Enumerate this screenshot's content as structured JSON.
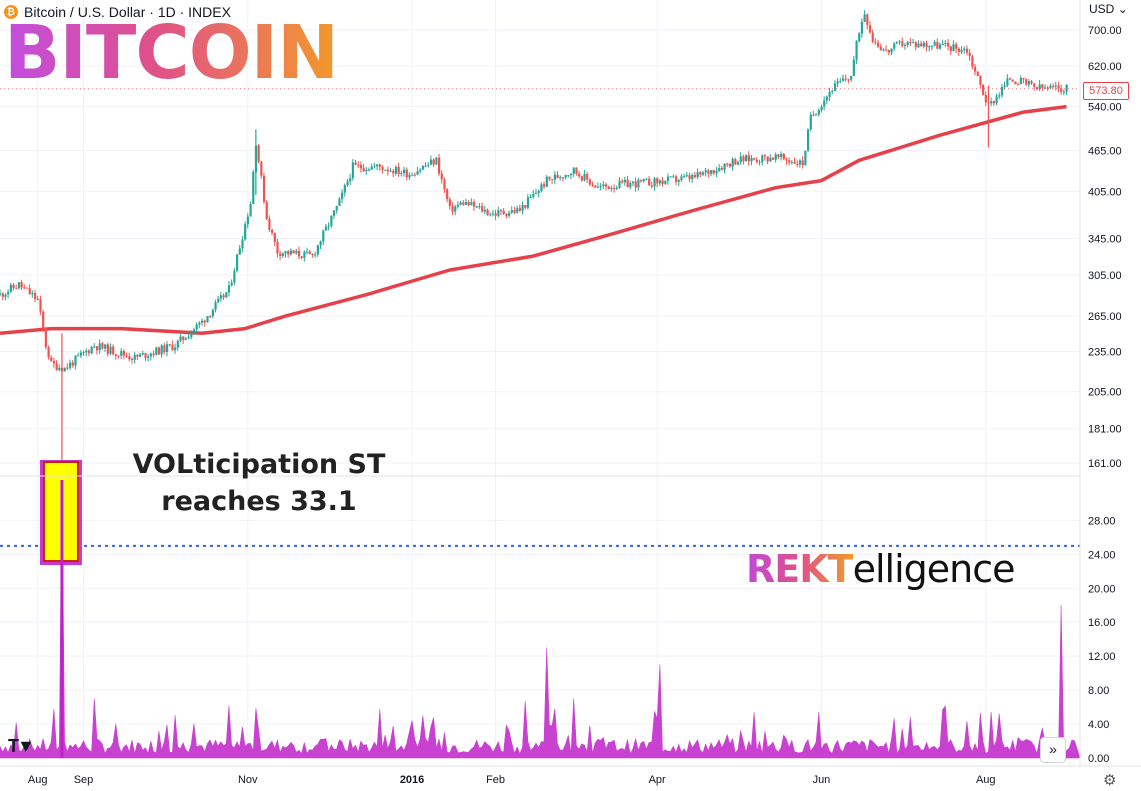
{
  "header": {
    "symbol_icon": "bitcoin-icon",
    "title": "Bitcoin / U.S. Dollar · 1D · INDEX"
  },
  "brand_title": "BITCOIN",
  "annotation": {
    "line1": "VOLticipation ST",
    "line2": "reaches 33.1"
  },
  "watermark": {
    "part1": "REKT",
    "part2": "elligence"
  },
  "currency_label": "USD",
  "last_price_label": "573.80",
  "controls": {
    "scroll_icon": "double-chevron-right-icon",
    "settings_icon": "gear-icon"
  },
  "colors": {
    "candle_up": "#26a69a",
    "candle_down": "#ef5350",
    "moving_average": "#e6414a",
    "indicator": "#c020c8",
    "threshold_line": "#2962ff",
    "highlight_fill": "#ffff00",
    "highlight_border": "#c43ad0"
  },
  "chart_data": [
    {
      "type": "candlestick",
      "scale": "log",
      "ylim": [
        155,
        760
      ],
      "x_labels": [
        "Aug",
        "Sep",
        "Nov",
        "2016",
        "Feb",
        "Apr",
        "Jun",
        "Aug"
      ],
      "y_ticks": [
        700,
        620,
        540,
        465,
        405,
        345,
        305,
        265,
        235,
        205,
        181,
        161
      ],
      "y_tick_labels": [
        "700.00",
        "620.00",
        "540.00",
        "465.00",
        "405.00",
        "345.00",
        "305.00",
        "265.00",
        "235.00",
        "205.00",
        "181.00",
        "161.00"
      ],
      "last_price": 573.8,
      "price_path": [
        {
          "x": "2015-08-01",
          "y": 285
        },
        {
          "x": "2015-08-08",
          "y": 295
        },
        {
          "x": "2015-08-15",
          "y": 280
        },
        {
          "x": "2015-08-18",
          "y": 240
        },
        {
          "x": "2015-08-20",
          "y": 225
        },
        {
          "x": "2015-08-25",
          "y": 222
        },
        {
          "x": "2015-09-05",
          "y": 240
        },
        {
          "x": "2015-09-20",
          "y": 230
        },
        {
          "x": "2015-10-05",
          "y": 240
        },
        {
          "x": "2015-10-15",
          "y": 260
        },
        {
          "x": "2015-10-25",
          "y": 290
        },
        {
          "x": "2015-11-02",
          "y": 390
        },
        {
          "x": "2015-11-04",
          "y": 480
        },
        {
          "x": "2015-11-08",
          "y": 370
        },
        {
          "x": "2015-11-12",
          "y": 330
        },
        {
          "x": "2015-11-25",
          "y": 325
        },
        {
          "x": "2015-12-05",
          "y": 390
        },
        {
          "x": "2015-12-10",
          "y": 440
        },
        {
          "x": "2015-12-20",
          "y": 440
        },
        {
          "x": "2015-12-31",
          "y": 430
        },
        {
          "x": "2016-01-10",
          "y": 450
        },
        {
          "x": "2016-01-15",
          "y": 380
        },
        {
          "x": "2016-01-20",
          "y": 390
        },
        {
          "x": "2016-01-31",
          "y": 375
        },
        {
          "x": "2016-02-10",
          "y": 380
        },
        {
          "x": "2016-02-20",
          "y": 420
        },
        {
          "x": "2016-03-01",
          "y": 435
        },
        {
          "x": "2016-03-10",
          "y": 410
        },
        {
          "x": "2016-03-20",
          "y": 415
        },
        {
          "x": "2016-04-01",
          "y": 418
        },
        {
          "x": "2016-04-15",
          "y": 425
        },
        {
          "x": "2016-04-30",
          "y": 450
        },
        {
          "x": "2016-05-15",
          "y": 455
        },
        {
          "x": "2016-05-25",
          "y": 445
        },
        {
          "x": "2016-05-28",
          "y": 520
        },
        {
          "x": "2016-06-05",
          "y": 575
        },
        {
          "x": "2016-06-12",
          "y": 600
        },
        {
          "x": "2016-06-15",
          "y": 700
        },
        {
          "x": "2016-06-17",
          "y": 745
        },
        {
          "x": "2016-06-20",
          "y": 680
        },
        {
          "x": "2016-06-25",
          "y": 650
        },
        {
          "x": "2016-07-01",
          "y": 670
        },
        {
          "x": "2016-07-15",
          "y": 665
        },
        {
          "x": "2016-07-25",
          "y": 655
        },
        {
          "x": "2016-08-02",
          "y": 540
        },
        {
          "x": "2016-08-10",
          "y": 595
        },
        {
          "x": "2016-08-20",
          "y": 575
        },
        {
          "x": "2016-08-31",
          "y": 573.8
        }
      ],
      "moving_average": [
        {
          "x": "2015-08-01",
          "y": 250
        },
        {
          "x": "2015-08-20",
          "y": 254
        },
        {
          "x": "2015-09-15",
          "y": 254
        },
        {
          "x": "2015-10-15",
          "y": 250
        },
        {
          "x": "2015-10-31",
          "y": 254
        },
        {
          "x": "2015-11-15",
          "y": 265
        },
        {
          "x": "2015-12-15",
          "y": 285
        },
        {
          "x": "2016-01-15",
          "y": 310
        },
        {
          "x": "2016-02-15",
          "y": 325
        },
        {
          "x": "2016-03-15",
          "y": 350
        },
        {
          "x": "2016-04-15",
          "y": 380
        },
        {
          "x": "2016-05-15",
          "y": 410
        },
        {
          "x": "2016-06-01",
          "y": 420
        },
        {
          "x": "2016-06-15",
          "y": 450
        },
        {
          "x": "2016-07-15",
          "y": 490
        },
        {
          "x": "2016-08-15",
          "y": 530
        },
        {
          "x": "2016-08-31",
          "y": 540
        }
      ]
    },
    {
      "type": "area",
      "series": [
        {
          "name": "VOLticipation ST",
          "values": []
        }
      ],
      "ylim": [
        0,
        33
      ],
      "y_ticks": [
        28,
        24,
        20,
        16,
        12,
        8,
        4,
        0
      ],
      "y_tick_labels": [
        "28.00",
        "24.00",
        "20.00",
        "16.00",
        "12.00",
        "8.00",
        "4.00",
        "0.00"
      ],
      "threshold": 25,
      "spikes": [
        {
          "x": "2015-08-24",
          "y": 33.1
        },
        {
          "x": "2016-02-20",
          "y": 13.0
        },
        {
          "x": "2016-04-02",
          "y": 11.0
        },
        {
          "x": "2016-08-29",
          "y": 18.0
        },
        {
          "x": "2015-09-05",
          "y": 7.0
        },
        {
          "x": "2016-03-01",
          "y": 7.0
        }
      ]
    }
  ]
}
